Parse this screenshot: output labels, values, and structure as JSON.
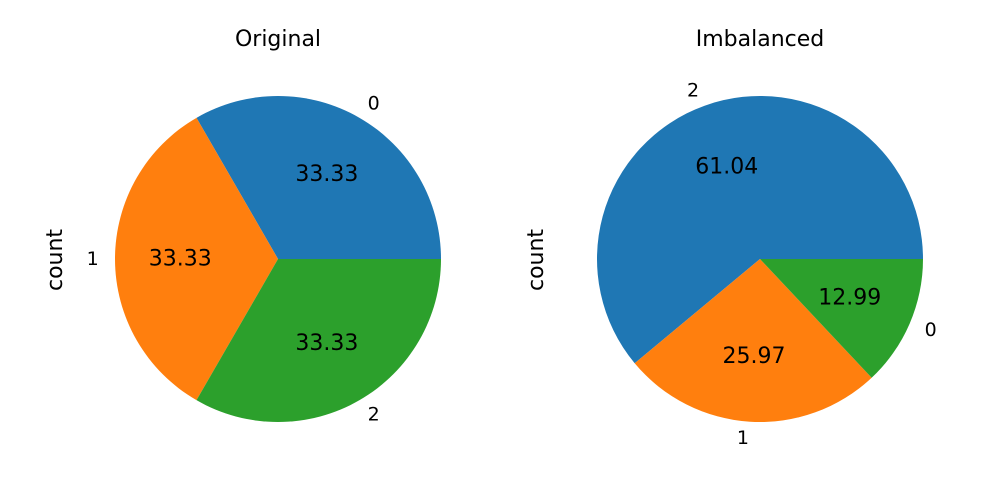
{
  "chart_data": [
    {
      "type": "pie",
      "title": "Original",
      "ylabel": "count",
      "categories": [
        "0",
        "1",
        "2"
      ],
      "values": [
        33.33,
        33.33,
        33.33
      ],
      "value_labels": [
        "33.33",
        "33.33",
        "33.33"
      ],
      "colors": [
        "#1f77b4",
        "#ff7f0e",
        "#2ca02c"
      ],
      "start_angle_deg": 0,
      "direction": "counterclockwise"
    },
    {
      "type": "pie",
      "title": "Imbalanced",
      "ylabel": "count",
      "categories": [
        "2",
        "1",
        "0"
      ],
      "values": [
        61.04,
        25.97,
        12.99
      ],
      "value_labels": [
        "61.04",
        "25.97",
        "12.99"
      ],
      "colors": [
        "#1f77b4",
        "#ff7f0e",
        "#2ca02c"
      ],
      "start_angle_deg": 0,
      "direction": "counterclockwise"
    }
  ]
}
